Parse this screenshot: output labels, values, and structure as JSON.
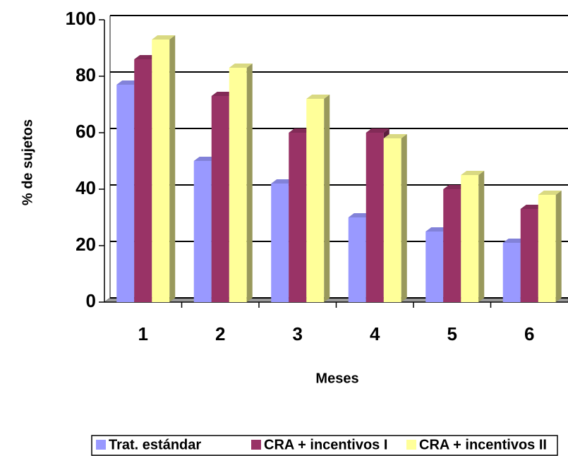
{
  "chart_data": {
    "type": "bar3d",
    "categories": [
      "1",
      "2",
      "3",
      "4",
      "5",
      "6"
    ],
    "series": [
      {
        "name": "Trat. estándar",
        "color": "#9999ff",
        "values": [
          77,
          50,
          42,
          30,
          25,
          21
        ]
      },
      {
        "name": "CRA + incentivos I",
        "color": "#993366",
        "values": [
          86,
          73,
          60,
          60,
          40,
          33
        ]
      },
      {
        "name": "CRA + incentivos II",
        "color": "#ffff99",
        "values": [
          93,
          83,
          72,
          58,
          45,
          38
        ]
      }
    ],
    "x_label": "Meses",
    "y_label": "% de sujetos",
    "ylim": [
      0,
      100
    ],
    "yticks": [
      0,
      20,
      40,
      60,
      80,
      100
    ],
    "grid": true,
    "legend": "bottom"
  }
}
